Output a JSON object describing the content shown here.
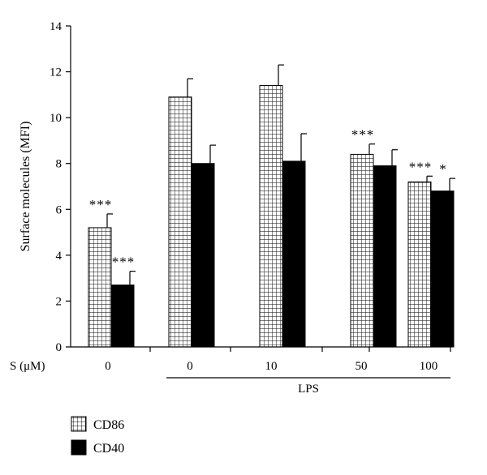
{
  "chart_data": {
    "type": "bar",
    "ylabel": "Surface molecules (MFI)",
    "ylim": [
      0,
      14
    ],
    "yticks": [
      0,
      2,
      4,
      6,
      8,
      10,
      12,
      14
    ],
    "x_prefix_label": "S (μM)",
    "categories": [
      "0",
      "0",
      "10",
      "50",
      "100"
    ],
    "group_label": "LPS",
    "group_label_spans": [
      1,
      4
    ],
    "series": [
      {
        "name": "CD86",
        "pattern": "grid",
        "values": [
          5.2,
          10.9,
          11.4,
          8.4,
          7.2
        ],
        "errors": [
          0.6,
          0.8,
          0.9,
          0.45,
          0.25
        ],
        "significance": [
          "***",
          "",
          "",
          "***",
          "***"
        ]
      },
      {
        "name": "CD40",
        "pattern": "solid",
        "values": [
          2.7,
          8.0,
          8.1,
          7.9,
          6.8
        ],
        "errors": [
          0.6,
          0.8,
          1.2,
          0.7,
          0.55
        ],
        "significance": [
          "***",
          "",
          "",
          "",
          "*"
        ]
      }
    ],
    "legend_position": "bottom-left",
    "grid": false
  }
}
